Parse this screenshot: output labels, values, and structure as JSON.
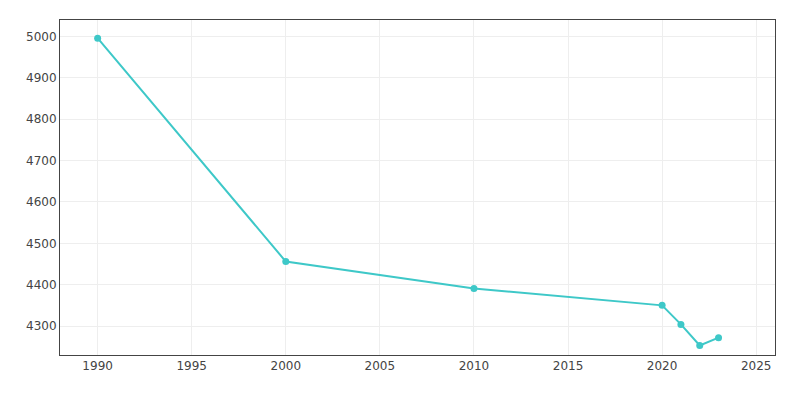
{
  "chart_data": {
    "type": "line",
    "x": [
      1990,
      2000,
      2010,
      2020,
      2021,
      2022,
      2023
    ],
    "values": [
      4996,
      4456,
      4391,
      4350,
      4304,
      4253,
      4272
    ],
    "color": "#3ec8c8",
    "marker": "circle",
    "xlim": [
      1988,
      2026
    ],
    "ylim": [
      4230,
      5040
    ],
    "xticks": [
      1990,
      1995,
      2000,
      2005,
      2010,
      2015,
      2020,
      2025
    ],
    "yticks": [
      4300,
      4400,
      4500,
      4600,
      4700,
      4800,
      4900,
      5000
    ],
    "grid": true
  }
}
